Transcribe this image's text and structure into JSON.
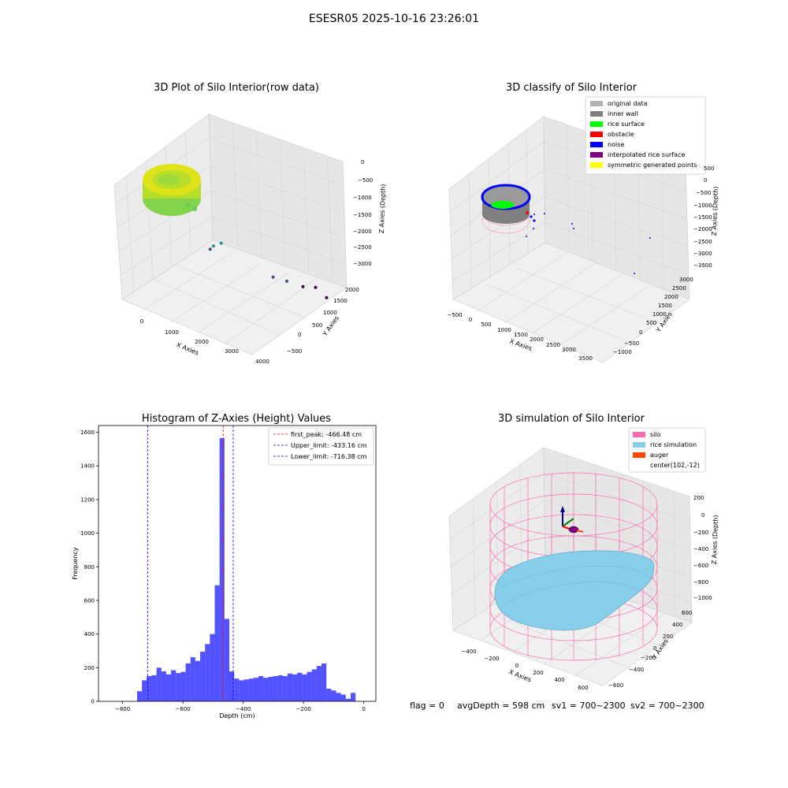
{
  "figure": {
    "suptitle": "ESESR05 2025-10-16 23:26:01",
    "footer": {
      "flag": "flag = 0",
      "avg_depth": "avgDepth = 598 cm",
      "sv1": "sv1 = 700~2300",
      "sv2": "sv2 = 700~2300"
    }
  },
  "chart_data": [
    {
      "id": "raw3d",
      "type": "scatter",
      "title": "3D Plot of Silo Interior(row data)",
      "xlabel": "X Axies",
      "ylabel": "Y Axies",
      "zlabel": "Z Axies (Depth)",
      "x_ticks": [
        "0",
        "1000",
        "2000",
        "3000",
        "4000"
      ],
      "y_ticks": [
        "−500",
        "0",
        "500",
        "1000",
        "1500",
        "2000"
      ],
      "z_ticks": [
        "0",
        "−500",
        "−1000",
        "−1500",
        "−2000",
        "−2500",
        "−3000"
      ],
      "colormap": "viridis",
      "points": [
        {
          "x": 3050,
          "y": 2000,
          "z": -2950
        },
        {
          "x": 2950,
          "y": 1650,
          "z": -2700
        },
        {
          "x": 2700,
          "y": 1350,
          "z": -2300
        },
        {
          "x": 2400,
          "y": 1200,
          "z": -2150
        },
        {
          "x": 3800,
          "y": 1500,
          "z": -2650
        },
        {
          "x": 300,
          "y": 1400,
          "z": -2100
        },
        {
          "x": 400,
          "y": 1400,
          "z": -1800
        },
        {
          "x": 600,
          "y": 1450,
          "z": -1500
        }
      ]
    },
    {
      "id": "classify3d",
      "type": "scatter",
      "title": "3D classify of Silo Interior",
      "xlabel": "X Axies",
      "ylabel": "Y Axies",
      "zlabel": "Z Axies (Depth)",
      "x_ticks": [
        "−500",
        "0",
        "500",
        "1000",
        "1500",
        "2000",
        "2500",
        "3000",
        "3500"
      ],
      "y_ticks": [
        "−1000",
        "−500",
        "0",
        "500",
        "1000",
        "1500",
        "2000",
        "2500",
        "3000"
      ],
      "z_ticks": [
        "500",
        "0",
        "−500",
        "−1000",
        "−1500",
        "−2000",
        "−2500",
        "−3000",
        "−3500"
      ],
      "legend": [
        {
          "label": "original data",
          "color": "#b3b3b3"
        },
        {
          "label": "inner wall",
          "color": "#808080"
        },
        {
          "label": "rice surface",
          "color": "#00ff00"
        },
        {
          "label": "obstacle",
          "color": "#ff0000"
        },
        {
          "label": "noise",
          "color": "#0000ff"
        },
        {
          "label": "interpolated rice surface",
          "color": "#800080"
        },
        {
          "label": "symmetric generated points",
          "color": "#ffff00"
        }
      ]
    },
    {
      "id": "histogram",
      "type": "bar",
      "title": "Histogram of Z-Axies (Height) Values",
      "xlabel": "Depth (cm)",
      "ylabel": "Frequency",
      "xlim": [
        -880,
        40
      ],
      "ylim": [
        0,
        1640
      ],
      "x_ticks": [
        -800,
        -600,
        -400,
        -200,
        0
      ],
      "x_tick_labels": [
        "−800",
        "−600",
        "−400",
        "−200",
        "0"
      ],
      "y_ticks": [
        0,
        200,
        400,
        600,
        800,
        1000,
        1200,
        1400,
        1600
      ],
      "bin_start": -752,
      "bin_width": 16.1,
      "values": [
        60,
        125,
        150,
        155,
        200,
        178,
        160,
        185,
        168,
        175,
        225,
        262,
        240,
        295,
        340,
        400,
        690,
        1565,
        490,
        178,
        135,
        125,
        130,
        135,
        140,
        150,
        140,
        145,
        150,
        155,
        150,
        165,
        160,
        170,
        160,
        175,
        190,
        210,
        225,
        75,
        65,
        50,
        40,
        15,
        50
      ],
      "bar_color": "#0000ff",
      "lines": [
        {
          "label": "first_peak: -466.48 cm",
          "x": -466.48,
          "color": "#ff0000"
        },
        {
          "label": "Upper_limit: -433.16 cm",
          "x": -433.16,
          "color": "#0000ff"
        },
        {
          "label": "Lower_limit: -716.38 cm",
          "x": -716.38,
          "color": "#0000ff"
        }
      ]
    },
    {
      "id": "simulation3d",
      "type": "area",
      "title": "3D simulation of Silo Interior",
      "xlabel": "X Axies",
      "ylabel": "Y Axies",
      "zlabel": "Z Axies (Depth)",
      "x_ticks": [
        "−400",
        "−200",
        "0",
        "200",
        "400",
        "600"
      ],
      "y_ticks": [
        "−600",
        "−400",
        "−200",
        "0",
        "200",
        "400",
        "600"
      ],
      "z_ticks": [
        "200",
        "0",
        "−200",
        "−400",
        "−600",
        "−800",
        "−1000"
      ],
      "legend": [
        {
          "label": "silo",
          "color": "#ff69b4"
        },
        {
          "label": "rice simulation",
          "color": "#87ceeb"
        },
        {
          "label": "auger",
          "color": "#ff4500"
        },
        {
          "label": "center(102,-12)",
          "color": ""
        }
      ]
    }
  ]
}
